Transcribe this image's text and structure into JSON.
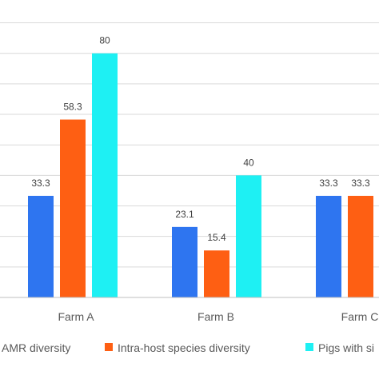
{
  "chart_data": {
    "type": "bar",
    "categories": [
      "Farm A",
      "Farm B",
      "Farm C"
    ],
    "series": [
      {
        "name": "AMR diversity",
        "color": "#2e75f0",
        "values": [
          33.3,
          23.1,
          33.3
        ]
      },
      {
        "name": "Intra-host species diversity",
        "color": "#fe5f13",
        "values": [
          58.3,
          15.4,
          33.3
        ]
      },
      {
        "name": "Pigs with si",
        "color": "#1ef0f3",
        "values": [
          80,
          40,
          null
        ]
      }
    ],
    "data_labels": [
      [
        "33.3",
        "23.1",
        "33.3"
      ],
      [
        "58.3",
        "15.4",
        "33.3"
      ],
      [
        "80",
        "40",
        ""
      ]
    ],
    "title": "",
    "xlabel": "",
    "ylabel": "",
    "ylim": [
      0,
      100
    ],
    "grid": true,
    "legend": "bottom"
  }
}
